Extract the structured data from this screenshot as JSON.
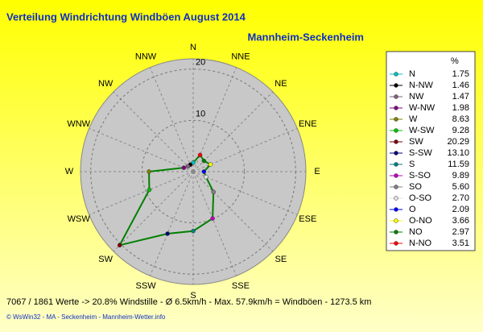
{
  "chart_data": {
    "type": "radar",
    "title": "Verteilung Windrichtung Windböen  August 2014",
    "subtitle": "Mannheim-Seckenheim",
    "categories": [
      "N",
      "NNW",
      "NW",
      "WNW",
      "W",
      "WSW",
      "SW",
      "SSW",
      "S",
      "SSE",
      "SE",
      "ESE",
      "E",
      "ENE",
      "NE",
      "NNE"
    ],
    "legend_title": "%",
    "legend_names": [
      "N",
      "N-NW",
      "NW",
      "W-NW",
      "W",
      "W-SW",
      "SW",
      "S-SW",
      "S",
      "S-SO",
      "SO",
      "O-SO",
      "O",
      "O-NO",
      "NO",
      "N-NO"
    ],
    "values": [
      1.75,
      1.46,
      1.47,
      1.98,
      8.63,
      9.28,
      20.29,
      13.1,
      11.59,
      9.89,
      5.6,
      2.7,
      2.09,
      3.66,
      2.97,
      3.51
    ],
    "value_labels": [
      "1.75",
      "1.46",
      "1.47",
      "1.98",
      "8.63",
      "9.28",
      "20.29",
      "13.10",
      "11.59",
      "9.89",
      "5.60",
      "2.70",
      "2.09",
      "3.66",
      "2.97",
      "3.51"
    ],
    "point_colors": [
      "#00c0c0",
      "#000000",
      "#806080",
      "#800080",
      "#808000",
      "#00c000",
      "#800000",
      "#000080",
      "#008080",
      "#c000c0",
      "#808080",
      "#e0e0e0",
      "#0000ff",
      "#ffff00",
      "#008000",
      "#ff0000"
    ],
    "color": "#008000",
    "rlim": [
      0,
      22
    ],
    "rticks": [
      10,
      20
    ],
    "footer": "7067 / 1861 Werte  -> 20.8% Windstille   -   Ø 6.5km/h  -  Max. 57.9km/h = Windböen   -   1273.5 km",
    "credits": "© WsWin32  -  MA - Seckenheim  -  Mannheim-Wetter.info"
  }
}
